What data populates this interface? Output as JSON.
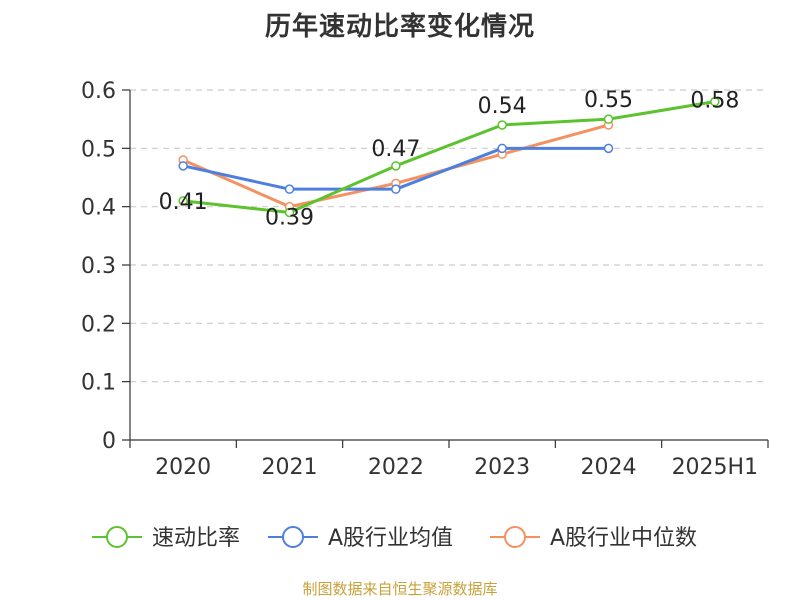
{
  "chart_data": {
    "type": "line",
    "title": "历年速动比率变化情况",
    "categories": [
      "2020",
      "2021",
      "2022",
      "2023",
      "2024",
      "2025H1"
    ],
    "ylim": [
      0,
      0.6
    ],
    "yticks": [
      "0",
      "0.1",
      "0.2",
      "0.3",
      "0.4",
      "0.5",
      "0.6"
    ],
    "grid": true,
    "legend": "bottom",
    "series": [
      {
        "name": "速动比率",
        "color": "#5cc22e",
        "values": [
          0.41,
          0.39,
          0.47,
          0.54,
          0.55,
          0.58
        ],
        "labels": [
          "0.41",
          "0.39",
          "0.47",
          "0.54",
          "0.55",
          "0.58"
        ]
      },
      {
        "name": "A股行业均值",
        "color": "#4e7fdf",
        "values": [
          0.47,
          0.43,
          0.43,
          0.5,
          0.5,
          null
        ]
      },
      {
        "name": "A股行业中位数",
        "color": "#f5915e",
        "values": [
          0.48,
          0.4,
          0.44,
          0.49,
          0.54,
          null
        ]
      }
    ]
  },
  "source": "制图数据来自恒生聚源数据库"
}
